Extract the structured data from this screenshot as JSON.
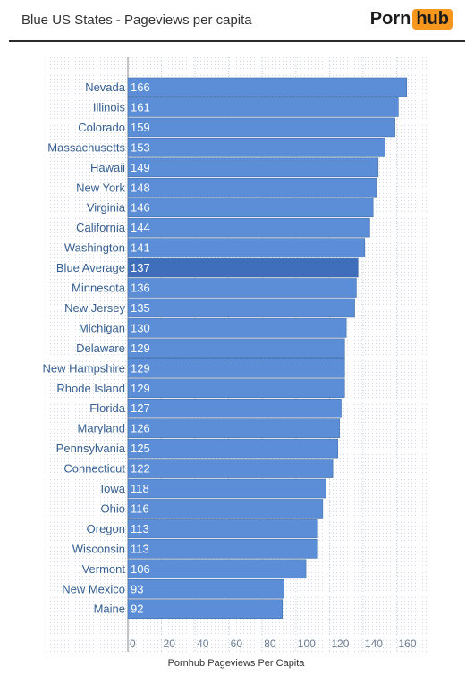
{
  "header": {
    "title": "Blue US States - Pageviews per capita",
    "logo_part1": "Porn",
    "logo_part2": "hub"
  },
  "chart_data": {
    "type": "bar",
    "orientation": "horizontal",
    "title": "Blue US States - Pageviews per capita",
    "xlabel": "Pornhub Pageviews Per Capita",
    "ylabel": "",
    "xlim": [
      0,
      175
    ],
    "x_ticks": [
      0,
      20,
      40,
      60,
      80,
      100,
      120,
      140,
      160
    ],
    "categories": [
      "Nevada",
      "Illinois",
      "Colorado",
      "Massachusetts",
      "Hawaii",
      "New York",
      "Virginia",
      "California",
      "Washington",
      "Blue Average",
      "Minnesota",
      "New Jersey",
      "Michigan",
      "Delaware",
      "New Hampshire",
      "Rhode Island",
      "Florida",
      "Maryland",
      "Pennsylvania",
      "Connecticut",
      "Iowa",
      "Ohio",
      "Oregon",
      "Wisconsin",
      "Vermont",
      "New Mexico",
      "Maine"
    ],
    "values": [
      166,
      161,
      159,
      153,
      149,
      148,
      146,
      144,
      141,
      137,
      136,
      135,
      130,
      129,
      129,
      129,
      127,
      126,
      125,
      122,
      118,
      116,
      113,
      113,
      106,
      93,
      92
    ],
    "highlight": "Blue Average",
    "grid": true,
    "colors": {
      "bar": "#5b8ed6",
      "highlight": "#3f6fba",
      "bar_border": "#456fa9"
    }
  }
}
